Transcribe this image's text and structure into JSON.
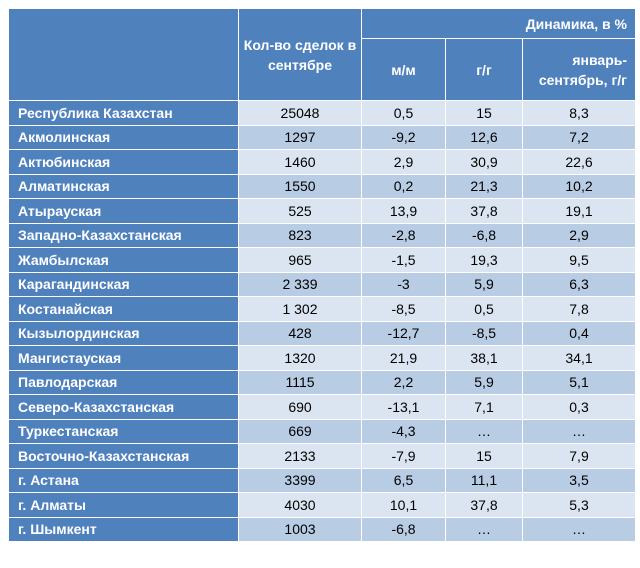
{
  "header": {
    "deals": "Кол-во сделок в сентябре",
    "dynamics": "Динамика, в %",
    "mm": "м/м",
    "yy": "г/г",
    "ytd": "январь-сентябрь, г/г"
  },
  "rows": [
    {
      "region": "Республика Казахстан",
      "deals": "25048",
      "mm": "0,5",
      "yy": "15",
      "ytd": "8,3"
    },
    {
      "region": "Акмолинская",
      "deals": "1297",
      "mm": "-9,2",
      "yy": "12,6",
      "ytd": "7,2"
    },
    {
      "region": "Актюбинская",
      "deals": "1460",
      "mm": "2,9",
      "yy": "30,9",
      "ytd": "22,6"
    },
    {
      "region": "Алматинская",
      "deals": "1550",
      "mm": "0,2",
      "yy": "21,3",
      "ytd": "10,2"
    },
    {
      "region": "Атырауская",
      "deals": "525",
      "mm": "13,9",
      "yy": "37,8",
      "ytd": "19,1"
    },
    {
      "region": "Западно-Казахстанская",
      "deals": "823",
      "mm": "-2,8",
      "yy": "-6,8",
      "ytd": "2,9"
    },
    {
      "region": "Жамбылская",
      "deals": "965",
      "mm": "-1,5",
      "yy": "19,3",
      "ytd": "9,5"
    },
    {
      "region": "Карагандинская",
      "deals": "2 339",
      "mm": "-3",
      "yy": "5,9",
      "ytd": "6,3"
    },
    {
      "region": "Костанайская",
      "deals": "1 302",
      "mm": "-8,5",
      "yy": "0,5",
      "ytd": "7,8"
    },
    {
      "region": "Кызылординская",
      "deals": "428",
      "mm": "-12,7",
      "yy": "-8,5",
      "ytd": "0,4"
    },
    {
      "region": "Мангистауская",
      "deals": "1320",
      "mm": "21,9",
      "yy": "38,1",
      "ytd": "34,1"
    },
    {
      "region": "Павлодарская",
      "deals": "1115",
      "mm": "2,2",
      "yy": "5,9",
      "ytd": "5,1"
    },
    {
      "region": "Северо-Казахстанская",
      "deals": "690",
      "mm": "-13,1",
      "yy": "7,1",
      "ytd": "0,3"
    },
    {
      "region": "Туркестанская",
      "deals": "669",
      "mm": "-4,3",
      "yy": "…",
      "ytd": "…"
    },
    {
      "region": "Восточно-Казахстанская",
      "deals": "2133",
      "mm": "-7,9",
      "yy": "15",
      "ytd": "7,9"
    },
    {
      "region": "г. Астана",
      "deals": "3399",
      "mm": "6,5",
      "yy": "11,1",
      "ytd": "3,5"
    },
    {
      "region": "г. Алматы",
      "deals": "4030",
      "mm": "10,1",
      "yy": "37,8",
      "ytd": "5,3"
    },
    {
      "region": "г. Шымкент",
      "deals": "1003",
      "mm": "-6,8",
      "yy": "…",
      "ytd": "…"
    }
  ]
}
